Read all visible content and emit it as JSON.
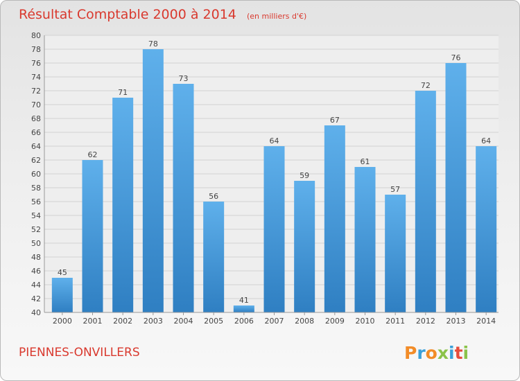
{
  "chart_data": {
    "type": "bar",
    "title": "Résultat Comptable 2000 à 2014",
    "subtitle": "(en milliers d'€)",
    "categories": [
      "2000",
      "2001",
      "2002",
      "2003",
      "2004",
      "2005",
      "2006",
      "2007",
      "2008",
      "2009",
      "2010",
      "2011",
      "2012",
      "2013",
      "2014"
    ],
    "values": [
      45,
      62,
      71,
      78,
      73,
      56,
      41,
      64,
      59,
      67,
      61,
      57,
      72,
      76,
      64
    ],
    "ylim": [
      40,
      80
    ],
    "ytick_step": 2,
    "xlabel": "",
    "ylabel": "",
    "grid": true,
    "bar_color": "#4b9fe0"
  },
  "footer": {
    "commune": "PIENNES-ONVILLERS",
    "logo_text": "Proxiti",
    "logo_letters": [
      "P",
      "r",
      "o",
      "x",
      "i",
      "t",
      "i"
    ],
    "logo_colors": [
      "#f28c28",
      "#3aa0d9",
      "#f28c28",
      "#8bc34a",
      "#3aa0d9",
      "#e74c3c",
      "#8bc34a"
    ]
  }
}
